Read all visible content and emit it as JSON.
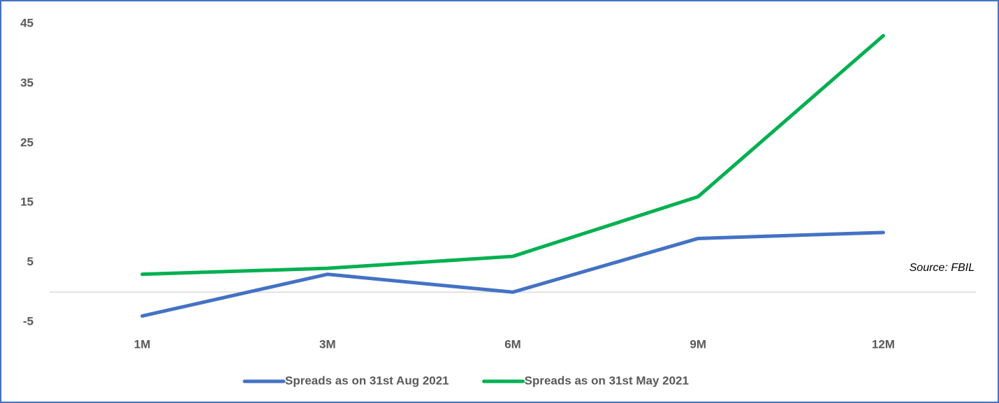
{
  "chart_data": {
    "type": "line",
    "categories": [
      "1M",
      "3M",
      "6M",
      "9M",
      "12M"
    ],
    "series": [
      {
        "name": "Spreads as on 31st Aug 2021",
        "color": "#4472c4",
        "values": [
          -4,
          3,
          0,
          9,
          10
        ]
      },
      {
        "name": "Spreads as on 31st May 2021",
        "color": "#00b050",
        "values": [
          3,
          4,
          6,
          16,
          43
        ]
      }
    ],
    "ylim": [
      -5,
      45
    ],
    "yticks": [
      -5,
      5,
      15,
      25,
      35,
      45
    ],
    "annotation": "Source: FBIL",
    "legend": "bottom"
  }
}
